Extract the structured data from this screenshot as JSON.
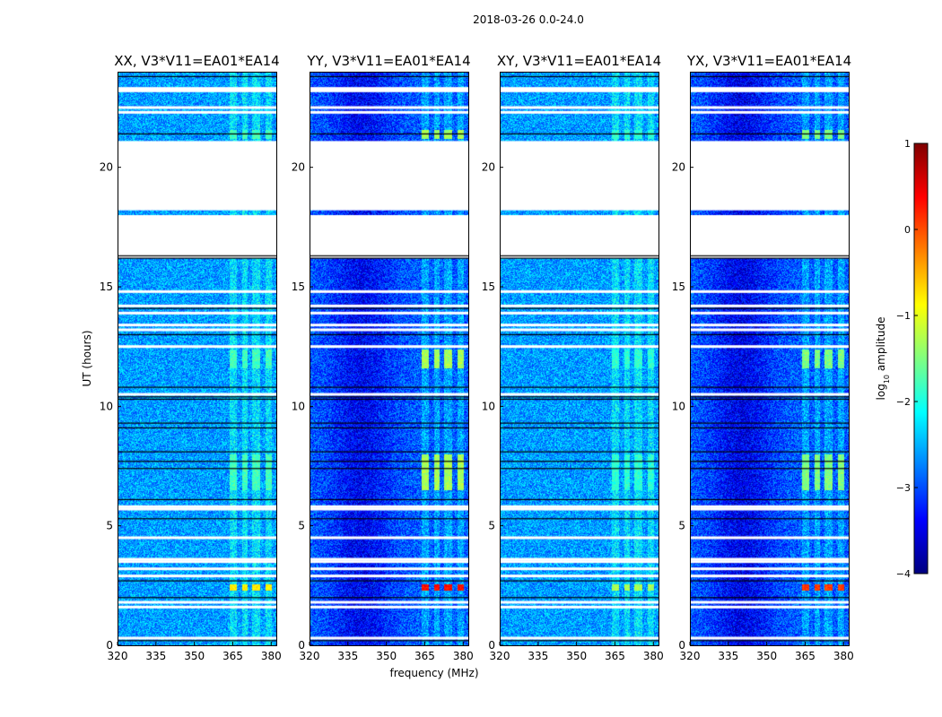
{
  "chart_data": {
    "type": "heatmap",
    "suptitle": "2018-03-26 0.0-24.0",
    "xlabel": "frequency (MHz)",
    "ylabel": "UT (hours)",
    "xlim": [
      320,
      382
    ],
    "ylim": [
      0,
      24
    ],
    "xticks": [
      "320",
      "335",
      "350",
      "365",
      "380"
    ],
    "yticks": [
      "0",
      "5",
      "10",
      "15",
      "20"
    ],
    "colorbar": {
      "label_prefix": "log",
      "label_sub": "10",
      "label_suffix": " amplitude",
      "ticks": [
        "1",
        "0",
        "−1",
        "−2",
        "−3",
        "−4"
      ],
      "range": [
        -4,
        1
      ],
      "colors": [
        "#00007f",
        "#0000ff",
        "#0080ff",
        "#00ffff",
        "#80ff80",
        "#ffff00",
        "#ff8000",
        "#ff0000",
        "#7f0000"
      ]
    },
    "gap_hours": [
      [
        18.2,
        21.1
      ],
      [
        16.2,
        18.0
      ]
    ],
    "white_lines_hours": [
      0.3,
      1.6,
      1.8,
      2.9,
      3.2,
      3.5,
      3.6,
      4.5,
      5.7,
      5.8,
      10.5,
      12.5,
      13.2,
      13.4,
      13.9,
      14.2,
      14.8,
      22.3,
      22.5,
      23.2,
      23.3
    ],
    "black_lines_hours": [
      0.2,
      2.0,
      2.7,
      5.3,
      6.1,
      7.4,
      7.7,
      8.1,
      9.1,
      9.3,
      10.3,
      10.4,
      10.8,
      13.0,
      14.1,
      16.2,
      16.3,
      21.4,
      23.8
    ],
    "rfi_channels_mhz": [
      [
        363.5,
        366.5
      ],
      [
        368.5,
        370.5
      ],
      [
        372.5,
        375.5
      ],
      [
        377.5,
        380
      ]
    ],
    "panels": [
      {
        "title": "XX, V3*V11=EA01*EA14",
        "base_level": -2.6,
        "rfi_level": -1.8,
        "peak_level": -0.8,
        "left_dip": 0.0
      },
      {
        "title": "YY, V3*V11=EA01*EA14",
        "base_level": -2.9,
        "rfi_level": -1.3,
        "peak_level": 0.3,
        "left_dip": 0.5
      },
      {
        "title": "XY, V3*V11=EA01*EA14",
        "base_level": -2.6,
        "rfi_level": -1.9,
        "peak_level": -1.3,
        "left_dip": 0.0
      },
      {
        "title": "YX, V3*V11=EA01*EA14",
        "base_level": -2.9,
        "rfi_level": -1.5,
        "peak_level": 0.1,
        "left_dip": 0.55
      }
    ]
  }
}
